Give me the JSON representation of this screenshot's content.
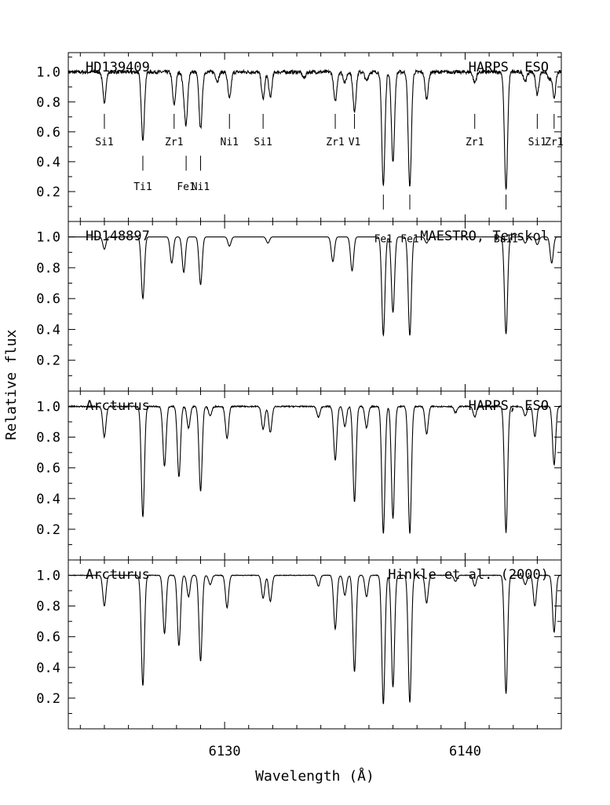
{
  "chart_data": {
    "type": "line",
    "xlabel": "Wavelength (Å)",
    "ylabel": "Relative flux",
    "xlim": [
      6123.5,
      6144
    ],
    "x_ticks": [
      6130,
      6140
    ],
    "x_tick_labels": [
      "6130",
      "6140"
    ],
    "x_minor_step": 1,
    "y_ticks": [
      0.2,
      0.4,
      0.6,
      0.8,
      1.0
    ],
    "y_tick_labels": [
      "0.2",
      "0.4",
      "0.6",
      "0.8",
      "1.0"
    ],
    "y_minor_step": 0.1,
    "line_color": "#000000",
    "panels": [
      {
        "name": "HD139409",
        "right_label": "HARPS, ESO",
        "ylim": [
          0,
          1.13
        ],
        "noise": 0.012,
        "continuum": 1.0,
        "lines": [
          {
            "x": 6125.0,
            "depth": 0.2
          },
          {
            "x": 6126.6,
            "depth": 0.45
          },
          {
            "x": 6127.9,
            "depth": 0.22
          },
          {
            "x": 6128.3,
            "depth": 0.08
          },
          {
            "x": 6128.4,
            "depth": 0.33
          },
          {
            "x": 6129.0,
            "depth": 0.38
          },
          {
            "x": 6129.7,
            "depth": 0.06
          },
          {
            "x": 6130.2,
            "depth": 0.18
          },
          {
            "x": 6131.6,
            "depth": 0.18
          },
          {
            "x": 6131.9,
            "depth": 0.17
          },
          {
            "x": 6133.3,
            "depth": 0.04
          },
          {
            "x": 6134.6,
            "depth": 0.2
          },
          {
            "x": 6135.0,
            "depth": 0.07
          },
          {
            "x": 6135.4,
            "depth": 0.26
          },
          {
            "x": 6135.9,
            "depth": 0.06
          },
          {
            "x": 6136.6,
            "depth": 0.76
          },
          {
            "x": 6137.0,
            "depth": 0.6
          },
          {
            "x": 6137.7,
            "depth": 0.77
          },
          {
            "x": 6138.4,
            "depth": 0.18
          },
          {
            "x": 6140.4,
            "depth": 0.07
          },
          {
            "x": 6141.7,
            "depth": 0.79
          },
          {
            "x": 6142.5,
            "depth": 0.06
          },
          {
            "x": 6143.0,
            "depth": 0.15
          },
          {
            "x": 6143.5,
            "depth": 0.05
          },
          {
            "x": 6143.7,
            "depth": 0.17
          }
        ],
        "annotations": [
          {
            "label": "Si1",
            "x": 6125.0,
            "row": 1
          },
          {
            "label": "Ti1",
            "x": 6126.6,
            "row": 2
          },
          {
            "label": "Zr1",
            "x": 6127.9,
            "row": 1
          },
          {
            "label": "Fe1",
            "x": 6128.4,
            "row": 2
          },
          {
            "label": "Ni1",
            "x": 6129.0,
            "row": 2
          },
          {
            "label": "Ni1",
            "x": 6130.2,
            "row": 1
          },
          {
            "label": "Si1",
            "x": 6131.6,
            "row": 1
          },
          {
            "label": "Zr1",
            "x": 6134.6,
            "row": 1
          },
          {
            "label": "V1",
            "x": 6135.4,
            "row": 1
          },
          {
            "label": "Fe1",
            "x": 6136.6,
            "row": 3
          },
          {
            "label": "Fe1",
            "x": 6137.7,
            "row": 3
          },
          {
            "label": "Zr1",
            "x": 6140.4,
            "row": 1
          },
          {
            "label": "BaII",
            "x": 6141.7,
            "row": 3
          },
          {
            "label": "Si1",
            "x": 6143.0,
            "row": 1
          },
          {
            "label": "Zr1",
            "x": 6143.7,
            "row": 1
          }
        ]
      },
      {
        "name": "HD148897",
        "right_label": "MAESTRO, Terskol",
        "ylim": [
          0,
          1.1
        ],
        "noise": 0.0,
        "continuum": 1.0,
        "lines": [
          {
            "x": 6125.0,
            "depth": 0.08
          },
          {
            "x": 6126.6,
            "depth": 0.4
          },
          {
            "x": 6127.8,
            "depth": 0.17
          },
          {
            "x": 6128.3,
            "depth": 0.23
          },
          {
            "x": 6129.0,
            "depth": 0.31
          },
          {
            "x": 6130.2,
            "depth": 0.06
          },
          {
            "x": 6131.8,
            "depth": 0.04
          },
          {
            "x": 6134.5,
            "depth": 0.16
          },
          {
            "x": 6135.3,
            "depth": 0.22
          },
          {
            "x": 6136.6,
            "depth": 0.64
          },
          {
            "x": 6137.0,
            "depth": 0.49
          },
          {
            "x": 6137.7,
            "depth": 0.64
          },
          {
            "x": 6138.4,
            "depth": 0.04
          },
          {
            "x": 6141.7,
            "depth": 0.63
          },
          {
            "x": 6142.5,
            "depth": 0.04
          },
          {
            "x": 6143.0,
            "depth": 0.05
          },
          {
            "x": 6143.6,
            "depth": 0.17
          }
        ],
        "annotations": []
      },
      {
        "name": "Arcturus",
        "right_label": "HARPS, ESO",
        "ylim": [
          0,
          1.1
        ],
        "noise": 0.004,
        "continuum": 1.0,
        "lines": [
          {
            "x": 6125.0,
            "depth": 0.2
          },
          {
            "x": 6126.6,
            "depth": 0.72
          },
          {
            "x": 6127.5,
            "depth": 0.39
          },
          {
            "x": 6128.1,
            "depth": 0.46
          },
          {
            "x": 6128.5,
            "depth": 0.14
          },
          {
            "x": 6129.0,
            "depth": 0.55
          },
          {
            "x": 6129.4,
            "depth": 0.06
          },
          {
            "x": 6130.1,
            "depth": 0.21
          },
          {
            "x": 6131.6,
            "depth": 0.15
          },
          {
            "x": 6131.9,
            "depth": 0.17
          },
          {
            "x": 6133.9,
            "depth": 0.07
          },
          {
            "x": 6134.6,
            "depth": 0.35
          },
          {
            "x": 6135.0,
            "depth": 0.13
          },
          {
            "x": 6135.4,
            "depth": 0.62
          },
          {
            "x": 6135.9,
            "depth": 0.14
          },
          {
            "x": 6136.6,
            "depth": 0.83
          },
          {
            "x": 6137.0,
            "depth": 0.73
          },
          {
            "x": 6137.7,
            "depth": 0.83
          },
          {
            "x": 6138.4,
            "depth": 0.18
          },
          {
            "x": 6139.6,
            "depth": 0.04
          },
          {
            "x": 6140.4,
            "depth": 0.07
          },
          {
            "x": 6141.7,
            "depth": 0.82
          },
          {
            "x": 6142.5,
            "depth": 0.06
          },
          {
            "x": 6142.9,
            "depth": 0.2
          },
          {
            "x": 6143.7,
            "depth": 0.38
          }
        ],
        "annotations": []
      },
      {
        "name": "Arcturus",
        "right_label": "Hinkle et al. (2000)",
        "ylim": [
          0,
          1.1
        ],
        "noise": 0.002,
        "continuum": 1.0,
        "lines": [
          {
            "x": 6125.0,
            "depth": 0.2
          },
          {
            "x": 6126.6,
            "depth": 0.72
          },
          {
            "x": 6127.5,
            "depth": 0.38
          },
          {
            "x": 6128.1,
            "depth": 0.46
          },
          {
            "x": 6128.5,
            "depth": 0.14
          },
          {
            "x": 6129.0,
            "depth": 0.56
          },
          {
            "x": 6129.4,
            "depth": 0.06
          },
          {
            "x": 6130.1,
            "depth": 0.21
          },
          {
            "x": 6131.6,
            "depth": 0.15
          },
          {
            "x": 6131.9,
            "depth": 0.17
          },
          {
            "x": 6133.9,
            "depth": 0.07
          },
          {
            "x": 6134.6,
            "depth": 0.35
          },
          {
            "x": 6135.0,
            "depth": 0.13
          },
          {
            "x": 6135.4,
            "depth": 0.63
          },
          {
            "x": 6135.9,
            "depth": 0.14
          },
          {
            "x": 6136.6,
            "depth": 0.84
          },
          {
            "x": 6137.0,
            "depth": 0.73
          },
          {
            "x": 6137.7,
            "depth": 0.83
          },
          {
            "x": 6138.4,
            "depth": 0.18
          },
          {
            "x": 6139.6,
            "depth": 0.04
          },
          {
            "x": 6140.4,
            "depth": 0.07
          },
          {
            "x": 6141.7,
            "depth": 0.77
          },
          {
            "x": 6142.5,
            "depth": 0.06
          },
          {
            "x": 6142.9,
            "depth": 0.2
          },
          {
            "x": 6143.7,
            "depth": 0.37
          }
        ],
        "annotations": []
      }
    ]
  }
}
